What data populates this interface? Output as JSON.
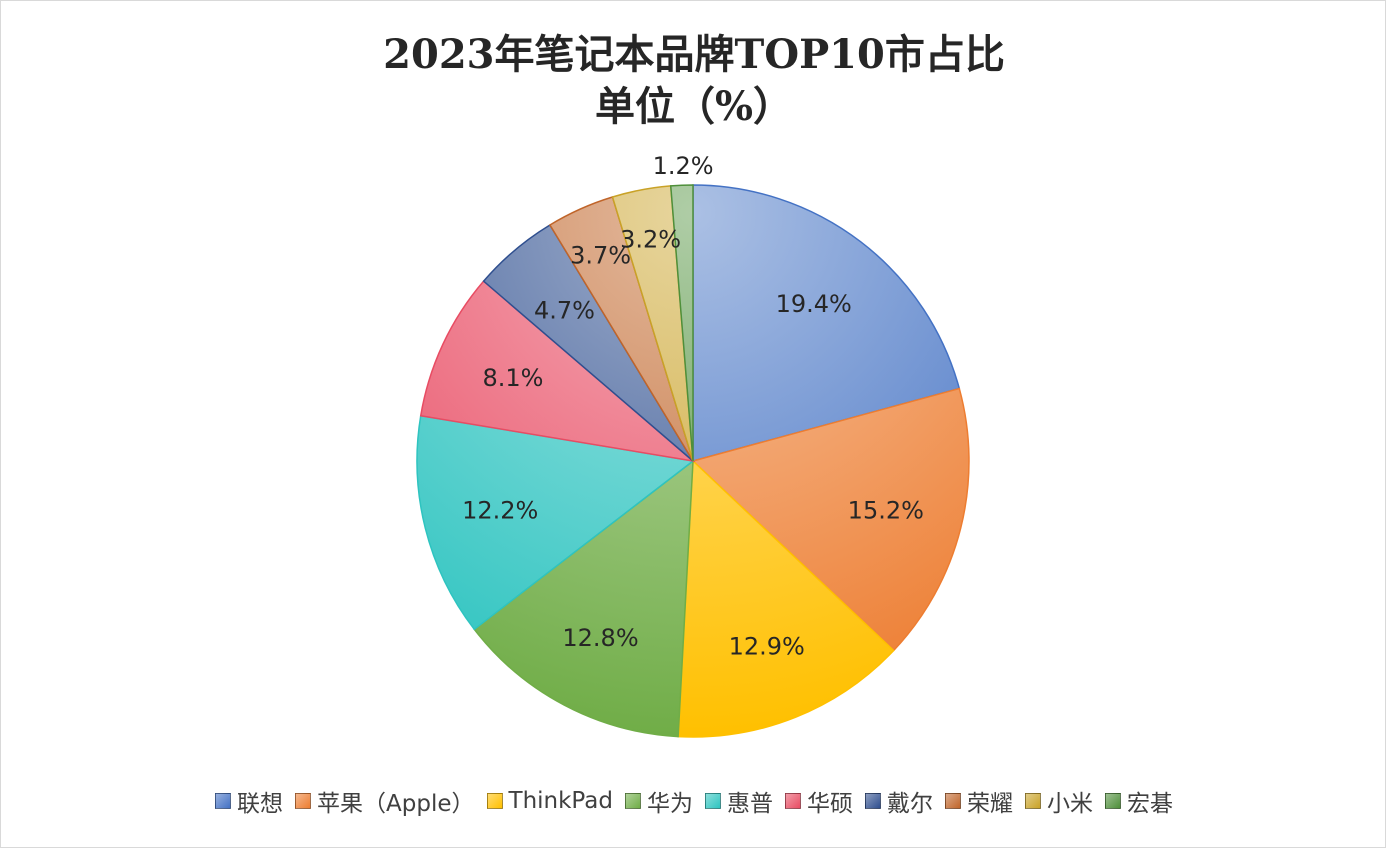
{
  "chart_data": {
    "type": "pie",
    "title": "2023年笔记本品牌TOP10市占比",
    "subtitle": "单位（%）",
    "categories": [
      "联想",
      "苹果（Apple）",
      "ThinkPad",
      "华为",
      "惠普",
      "华硕",
      "戴尔",
      "荣耀",
      "小米",
      "宏碁"
    ],
    "values": [
      19.4,
      15.2,
      12.9,
      12.8,
      12.2,
      8.1,
      4.7,
      3.7,
      3.2,
      1.2
    ],
    "data_labels": [
      "19.4%",
      "15.2%",
      "12.9%",
      "12.8%",
      "12.2%",
      "8.1%",
      "4.7%",
      "3.7%",
      "3.2%",
      "1.2%"
    ],
    "colors": [
      "#4472C4",
      "#ED7D31",
      "#FFC000",
      "#70AD47",
      "#2EC4C0",
      "#E84C63",
      "#2F4F8F",
      "#C0652A",
      "#C9A227",
      "#4E8F3A"
    ],
    "start_angle_deg": 0,
    "direction": "clockwise",
    "legend_position": "bottom"
  }
}
